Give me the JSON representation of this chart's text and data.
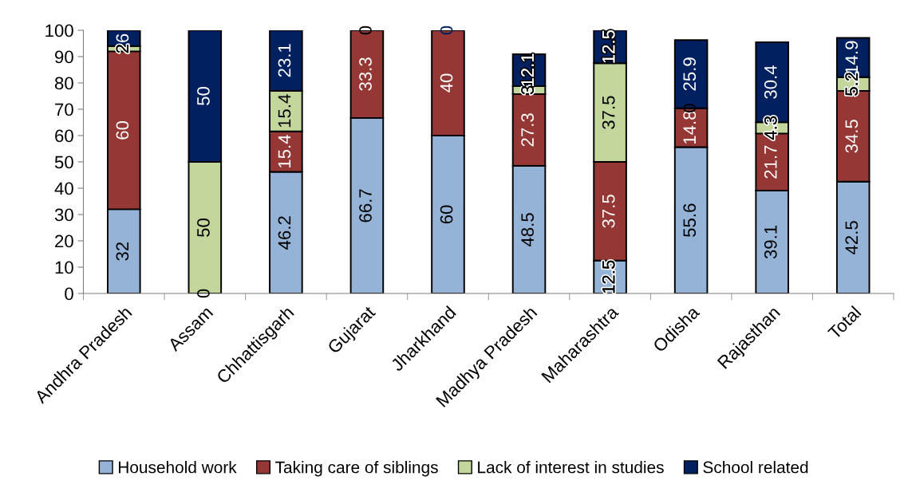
{
  "chart_data": {
    "type": "bar",
    "stacked": true,
    "categories": [
      "Andhra Pradesh",
      "Assam",
      "Chhattisgarh",
      "Gujarat",
      "Jharkhand",
      "Madhya Pradesh",
      "Maharashtra",
      "Odisha",
      "Rajasthan",
      "Total"
    ],
    "series": [
      {
        "name": "Household work",
        "color": "#95b3d7",
        "values": [
          32,
          0,
          46.2,
          66.7,
          60,
          48.5,
          12.5,
          55.6,
          39.1,
          42.5
        ],
        "value_labels": [
          "32",
          null,
          "46.2",
          "66.7",
          "60",
          "48.5",
          "12.5",
          "55.6",
          "39.1",
          "42.5"
        ]
      },
      {
        "name": "Taking care of siblings",
        "color": "#953735",
        "values": [
          60,
          null,
          15.4,
          33.3,
          40,
          27.3,
          37.5,
          14.8,
          21.7,
          34.5
        ],
        "value_labels": [
          "60",
          null,
          "15.4",
          "33.3",
          "40",
          "27.3",
          "37.5",
          "14.8",
          "21.7",
          "34.5"
        ]
      },
      {
        "name": "Lack of interest in studies",
        "color": "#c3d69b",
        "values": [
          2,
          50,
          15.4,
          0,
          null,
          3,
          37.5,
          0,
          4.3,
          5.2
        ],
        "value_labels": [
          "2",
          "50",
          "15.4",
          "0",
          null,
          "3",
          "37.5",
          null,
          "4.3",
          "5.2"
        ]
      },
      {
        "name": "School related",
        "color": "#002060",
        "values": [
          6,
          50,
          23.1,
          null,
          0,
          12.1,
          12.5,
          25.9,
          30.4,
          14.9
        ],
        "value_labels": [
          "6",
          "50",
          "23.1",
          null,
          "0",
          "12.1",
          "12.5",
          "25.9",
          "30.4",
          "14.9"
        ]
      }
    ],
    "annotations": [
      {
        "text": "0",
        "x": "Assam",
        "y": 0
      },
      {
        "text": "0",
        "x": "Odisha",
        "y": 70.4
      }
    ],
    "ylim": [
      0,
      100
    ],
    "yticks": [
      0,
      10,
      20,
      30,
      40,
      50,
      60,
      70,
      80,
      90,
      100
    ],
    "legend": "bottom"
  }
}
